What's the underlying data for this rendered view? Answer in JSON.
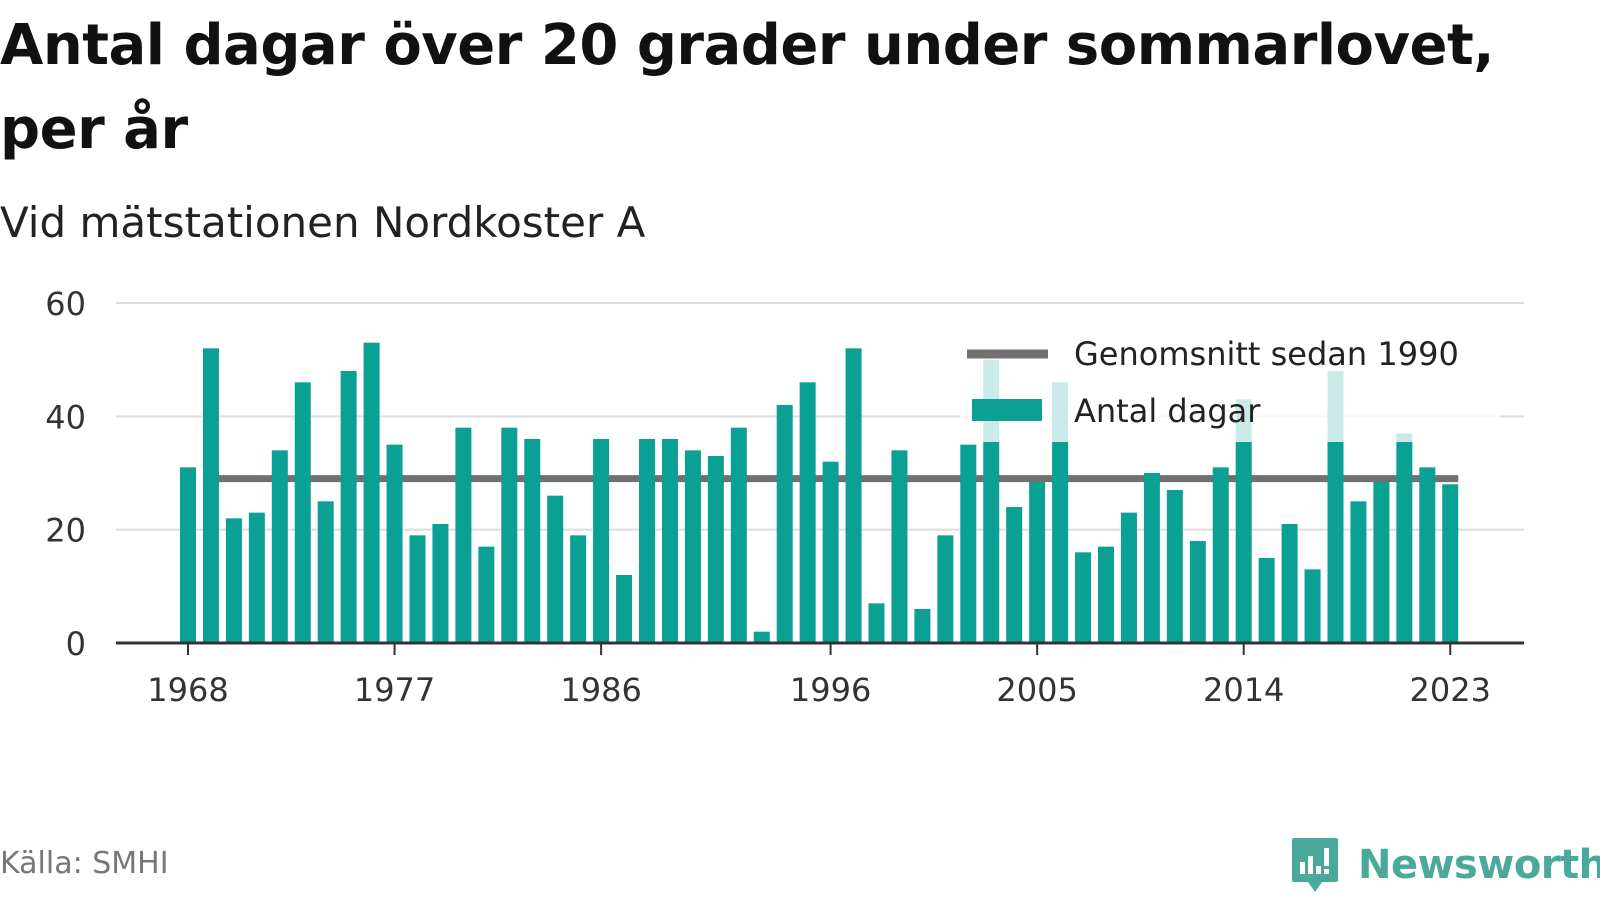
{
  "title": "Antal dagar över 20 grader under sommarlovet, per år",
  "subtitle": "Vid mätstationen Nordkoster A",
  "source": "Källa: SMHI",
  "brand": "Newsworthy",
  "colors": {
    "bar": "#0aa094",
    "average": "#707070",
    "bar_faded": "#cdebe7",
    "grid": "#dddddd",
    "axis": "#333333",
    "brand": "#4aa99a"
  },
  "chart_data": {
    "type": "bar",
    "ylim": [
      0,
      60
    ],
    "yticks": [
      0,
      20,
      40,
      60
    ],
    "xticks": [
      1968,
      1977,
      1986,
      1996,
      2005,
      2014,
      2023
    ],
    "grid": true,
    "legend_position": "top-right",
    "categories": [
      1968,
      1969,
      1970,
      1971,
      1972,
      1973,
      1974,
      1975,
      1976,
      1977,
      1978,
      1979,
      1980,
      1981,
      1982,
      1983,
      1984,
      1985,
      1986,
      1987,
      1988,
      1989,
      1990,
      1991,
      1992,
      1993,
      1994,
      1995,
      1996,
      1997,
      1998,
      1999,
      2000,
      2001,
      2002,
      2003,
      2004,
      2005,
      2006,
      2007,
      2008,
      2009,
      2010,
      2011,
      2012,
      2013,
      2014,
      2015,
      2016,
      2017,
      2018,
      2019,
      2020,
      2021,
      2022,
      2023
    ],
    "series": [
      {
        "name": "Antal dagar",
        "type": "bar",
        "values": [
          31,
          52,
          22,
          23,
          34,
          46,
          25,
          48,
          53,
          35,
          19,
          21,
          38,
          17,
          38,
          36,
          26,
          19,
          36,
          12,
          36,
          36,
          34,
          33,
          38,
          2,
          42,
          46,
          32,
          52,
          7,
          34,
          6,
          19,
          35,
          50,
          24,
          29,
          46,
          16,
          17,
          23,
          30,
          27,
          18,
          31,
          43,
          15,
          21,
          13,
          48,
          25,
          29,
          37,
          31,
          28
        ]
      },
      {
        "name": "Genomsnitt sedan 1990",
        "type": "line",
        "value": 29
      }
    ]
  }
}
